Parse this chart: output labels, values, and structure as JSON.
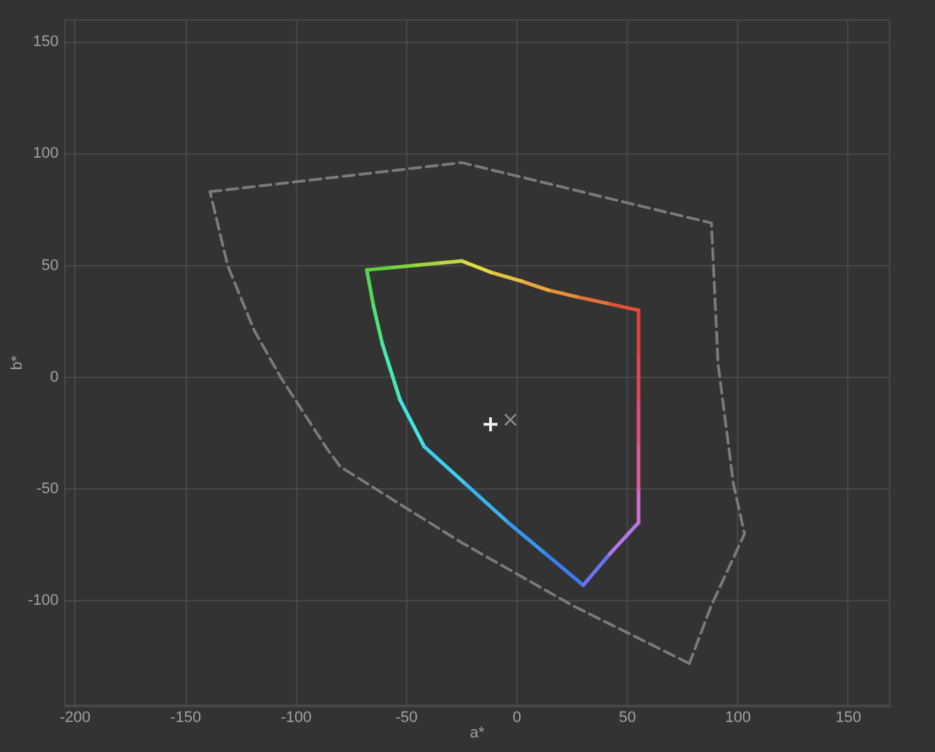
{
  "chart_data": {
    "type": "line",
    "xlabel": "a*",
    "ylabel": "b*",
    "xlim": [
      -205,
      169
    ],
    "ylim": [
      -147,
      160
    ],
    "xticks": [
      -200,
      -150,
      -100,
      -50,
      0,
      50,
      100,
      150
    ],
    "yticks": [
      -100,
      -50,
      0,
      50,
      100,
      150
    ],
    "grid": true,
    "legend": false,
    "series": [
      {
        "color": "#7a7a7a",
        "line_style": "dashed",
        "marker": "none",
        "x": [
          -139,
          -25,
          50,
          88,
          91,
          98,
          103,
          88,
          78
        ],
        "values": [
          83,
          96,
          78,
          69,
          6,
          -48,
          -70,
          -102,
          -128
        ]
      },
      {
        "color": "#7a7a7a",
        "line_style": "dashed",
        "marker": "none",
        "x": [
          78,
          25,
          -25,
          -51,
          -80,
          -86,
          -107,
          -119,
          -131,
          -139
        ],
        "values": [
          -128,
          -102,
          -74,
          -58,
          -40,
          -32,
          0,
          21,
          50,
          83
        ]
      },
      {
        "color": "#5ed23e",
        "x": [
          -68,
          -57
        ],
        "values": [
          48,
          49
        ]
      },
      {
        "color": "#7ed43e",
        "x": [
          -57,
          -47
        ],
        "values": [
          49,
          50
        ]
      },
      {
        "color": "#9ed63e",
        "x": [
          -47,
          -36
        ],
        "values": [
          50,
          51
        ]
      },
      {
        "color": "#c2da3f",
        "x": [
          -36,
          -25
        ],
        "values": [
          51,
          52
        ]
      },
      {
        "color": "#e2dc40",
        "x": [
          -25,
          -12
        ],
        "values": [
          52,
          47
        ]
      },
      {
        "color": "#e6c240",
        "x": [
          -12,
          2
        ],
        "values": [
          47,
          43
        ]
      },
      {
        "color": "#e8a83e",
        "x": [
          2,
          14
        ],
        "values": [
          43,
          39
        ]
      },
      {
        "color": "#e6903a",
        "x": [
          14,
          27
        ],
        "values": [
          39,
          36
        ]
      },
      {
        "color": "#e27036",
        "x": [
          27,
          41
        ],
        "values": [
          36,
          33
        ]
      },
      {
        "color": "#e05036",
        "x": [
          41,
          55
        ],
        "values": [
          33,
          30
        ]
      },
      {
        "color": "#e04040",
        "x": [
          55,
          55
        ],
        "values": [
          30,
          10
        ]
      },
      {
        "color": "#e04658",
        "x": [
          55,
          55
        ],
        "values": [
          10,
          -10
        ]
      },
      {
        "color": "#de4e7c",
        "x": [
          55,
          55
        ],
        "values": [
          -10,
          -30
        ]
      },
      {
        "color": "#da5ca4",
        "x": [
          55,
          55
        ],
        "values": [
          -30,
          -50
        ]
      },
      {
        "color": "#d26cd0",
        "x": [
          55,
          55
        ],
        "values": [
          -50,
          -65
        ]
      },
      {
        "color": "#b476ec",
        "x": [
          55,
          42
        ],
        "values": [
          -65,
          -79
        ]
      },
      {
        "color": "#6c72f2",
        "x": [
          42,
          30
        ],
        "values": [
          -79,
          -93
        ]
      },
      {
        "color": "#3a7cf2",
        "x": [
          30,
          13
        ],
        "values": [
          -93,
          -79
        ]
      },
      {
        "color": "#3896f2",
        "x": [
          13,
          -4
        ],
        "values": [
          -79,
          -65
        ]
      },
      {
        "color": "#3ab2f0",
        "x": [
          -4,
          -23
        ],
        "values": [
          -65,
          -48
        ]
      },
      {
        "color": "#3ecfee",
        "x": [
          -23,
          -42
        ],
        "values": [
          -48,
          -31
        ]
      },
      {
        "color": "#42e4de",
        "x": [
          -42,
          -53
        ],
        "values": [
          -31,
          -10
        ]
      },
      {
        "color": "#48e8b0",
        "x": [
          -53,
          -61
        ],
        "values": [
          -10,
          15
        ]
      },
      {
        "color": "#4ee27e",
        "x": [
          -61,
          -65
        ],
        "values": [
          15,
          32
        ]
      },
      {
        "color": "#54d656",
        "x": [
          -65,
          -68
        ],
        "values": [
          32,
          48
        ]
      },
      {
        "type": "scatter",
        "color": "#f2f2f2",
        "marker": "cross",
        "x": [
          -12
        ],
        "values": [
          -21
        ]
      },
      {
        "type": "scatter",
        "color": "#8c8c8c",
        "marker": "x",
        "x": [
          -3
        ],
        "values": [
          -19
        ]
      }
    ]
  }
}
